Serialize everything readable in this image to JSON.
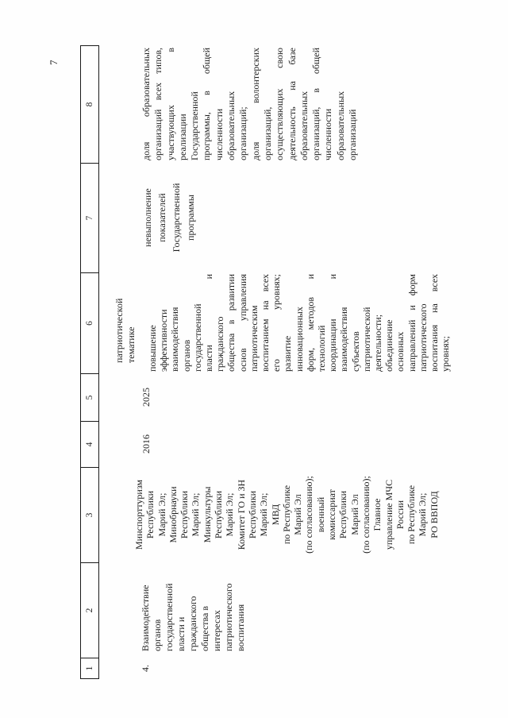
{
  "page": {
    "number": "7"
  },
  "table": {
    "header_numbers": [
      "1",
      "2",
      "3",
      "4",
      "5",
      "6",
      "7",
      "8"
    ],
    "continuation_row": {
      "col6": "патриотической\nтематике"
    },
    "row4": {
      "num": "4.",
      "col2": "Взаимодействие\nорганов\nгосударственной\nвласти и\nгражданского\nобщества в\nинтересах\nпатриотического\nвоспитания",
      "col3": "Минспорттуризм\nРеспублики\nМарий Эл;\nМинобрнауки\nРеспублики\nМарий Эл;\nМинкультуры\nРеспублики\nМарий Эл;\nКомитет ГО и ЗН\nРеспублики\nМарий Эл;\nМВД\nпо Республике\nМарий Эл\n(по согласованию);\nвоенный\nкомиссариат\nРеспублики\nМарий Эл\n(по согласованию);\nГлавное\nуправление МЧС\nРоссии\nпо Республике\nМарий Эл;\nРО ВВПОД",
      "col4": "2016",
      "col5": "2025",
      "col6": "повышение\nэффективности\nвзаимодействия\nорганов\nгосударственной\nвласти и\nгражданского\nобщества в развитии\nоснов управления\nпатриотическим\nвоспитанием на всех\nего уровнях;\nразвитие\nинновационных\nформ, методов и\nтехнологий\nкоординации и\nвзаимодействия\nсубъектов\nпатриотической\nдеятельности;\nобъединение\nосновных\nнаправлений и форм\nпатриотического\nвоспитания на всех\nуровнях;",
      "col7": "невыполнение\nпоказателей\nГосударственной\nпрограммы",
      "col8": "доля образовательных\nорганизаций всех типов,\nучаствующих в\nреализации\nГосударственной\nпрограммы, в общей\nчисленности\nобразовательных\nорганизаций;\nдоля волонтерских\nорганизаций,\nосуществляющих свою\nдеятельность на базе\nобразовательных\nорганизаций, в общей\nчисленности\nобразовательных\nорганизаций"
    }
  }
}
